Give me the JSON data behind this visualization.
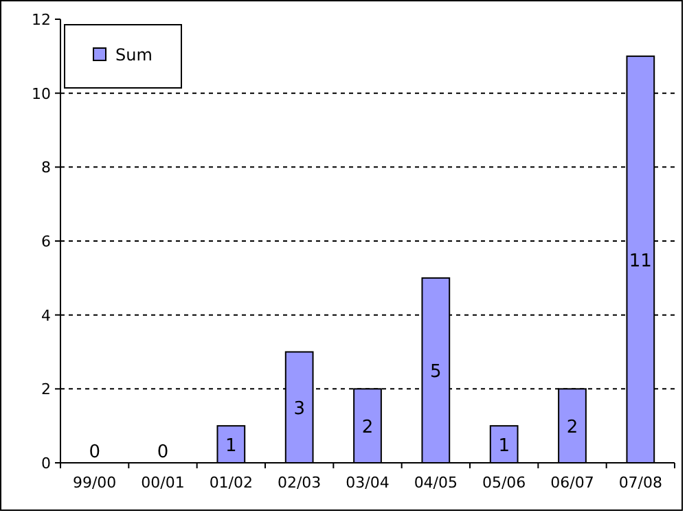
{
  "chart_data": {
    "type": "bar",
    "categories": [
      "99/00",
      "00/01",
      "01/02",
      "02/03",
      "03/04",
      "04/05",
      "05/06",
      "06/07",
      "07/08"
    ],
    "series": [
      {
        "name": "Sum",
        "color": "#9999ff",
        "values": [
          0,
          0,
          1,
          3,
          2,
          5,
          1,
          2,
          11
        ]
      }
    ],
    "ylim": [
      0,
      12
    ],
    "yticks": [
      0,
      2,
      4,
      6,
      8,
      10,
      12
    ],
    "grid": "y",
    "legend": "top left",
    "data_labels": true
  }
}
